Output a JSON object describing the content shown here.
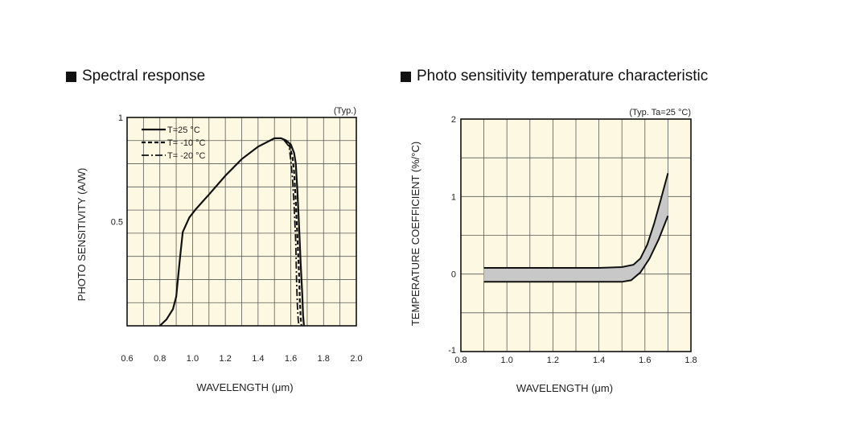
{
  "headings": {
    "left": "Spectral response",
    "right": "Photo sensitivity temperature characteristic"
  },
  "chart_data": [
    {
      "type": "line",
      "title": "Spectral response",
      "note": "(Typ.)",
      "xlabel": "WAVELENGTH (μm)",
      "ylabel": "PHOTO SENSITIVITY (A/W)",
      "xlim": [
        0.6,
        2.0
      ],
      "ylim": [
        0.0,
        1.0
      ],
      "x_ticks": [
        "0.6",
        "0.8",
        "1.0",
        "1.2",
        "1.4",
        "1.6",
        "1.8",
        "2.0"
      ],
      "x_tick_values": [
        0.6,
        0.8,
        1.0,
        1.2,
        1.4,
        1.6,
        1.8,
        2.0
      ],
      "y_ticks": [
        "1",
        "0.5"
      ],
      "y_tick_values": [
        1.0,
        0.5
      ],
      "grid": true,
      "legend_position": "top-left",
      "series": [
        {
          "name": "T=25 °C",
          "style": "solid",
          "x": [
            0.8,
            0.84,
            0.88,
            0.9,
            0.92,
            0.94,
            0.98,
            1.02,
            1.1,
            1.2,
            1.3,
            1.4,
            1.5,
            1.54,
            1.57,
            1.6,
            1.62,
            1.63,
            1.64,
            1.65,
            1.66,
            1.67,
            1.675,
            1.68
          ],
          "y": [
            0.0,
            0.03,
            0.08,
            0.14,
            0.3,
            0.45,
            0.52,
            0.56,
            0.63,
            0.72,
            0.8,
            0.86,
            0.9,
            0.9,
            0.89,
            0.87,
            0.83,
            0.78,
            0.65,
            0.48,
            0.3,
            0.15,
            0.05,
            0.0
          ]
        },
        {
          "name": "T= -10 °C",
          "style": "dashed",
          "x": [
            1.56,
            1.59,
            1.61,
            1.62,
            1.63,
            1.64,
            1.65,
            1.655,
            1.66,
            1.665
          ],
          "y": [
            0.89,
            0.87,
            0.81,
            0.74,
            0.6,
            0.43,
            0.25,
            0.12,
            0.04,
            0.0
          ]
        },
        {
          "name": "T= -20 °C",
          "style": "dash-dot",
          "x": [
            1.56,
            1.59,
            1.6,
            1.61,
            1.62,
            1.63,
            1.635,
            1.64,
            1.645,
            1.65
          ],
          "y": [
            0.89,
            0.86,
            0.79,
            0.71,
            0.58,
            0.4,
            0.22,
            0.1,
            0.03,
            0.0
          ]
        }
      ]
    },
    {
      "type": "area",
      "title": "Photo sensitivity temperature characteristic",
      "note": "(Typ. Ta=25 °C)",
      "xlabel": "WAVELENGTH (μm)",
      "ylabel": "TEMPERATURE COEFFICIENT (%/°C)",
      "xlim": [
        0.8,
        1.8
      ],
      "ylim": [
        -1.0,
        2.0
      ],
      "x_ticks": [
        "0.8",
        "1.0",
        "1.2",
        "1.4",
        "1.6",
        "1.8"
      ],
      "x_tick_values": [
        0.8,
        1.0,
        1.2,
        1.4,
        1.6,
        1.8
      ],
      "y_ticks": [
        "2",
        "1",
        "0",
        "-1"
      ],
      "y_tick_values": [
        2.0,
        1.0,
        0.0,
        -1.0
      ],
      "grid": true,
      "band_color": "#c8c8c8",
      "series": [
        {
          "name": "upper",
          "x": [
            0.9,
            1.0,
            1.1,
            1.2,
            1.3,
            1.4,
            1.5,
            1.55,
            1.58,
            1.61,
            1.64,
            1.67,
            1.7
          ],
          "y": [
            0.08,
            0.08,
            0.08,
            0.08,
            0.08,
            0.08,
            0.09,
            0.12,
            0.2,
            0.38,
            0.65,
            0.97,
            1.3
          ]
        },
        {
          "name": "lower",
          "x": [
            0.9,
            1.0,
            1.1,
            1.2,
            1.3,
            1.4,
            1.5,
            1.54,
            1.58,
            1.62,
            1.66,
            1.7
          ],
          "y": [
            -0.1,
            -0.1,
            -0.1,
            -0.1,
            -0.1,
            -0.1,
            -0.1,
            -0.08,
            0.02,
            0.2,
            0.45,
            0.75
          ]
        }
      ]
    }
  ]
}
